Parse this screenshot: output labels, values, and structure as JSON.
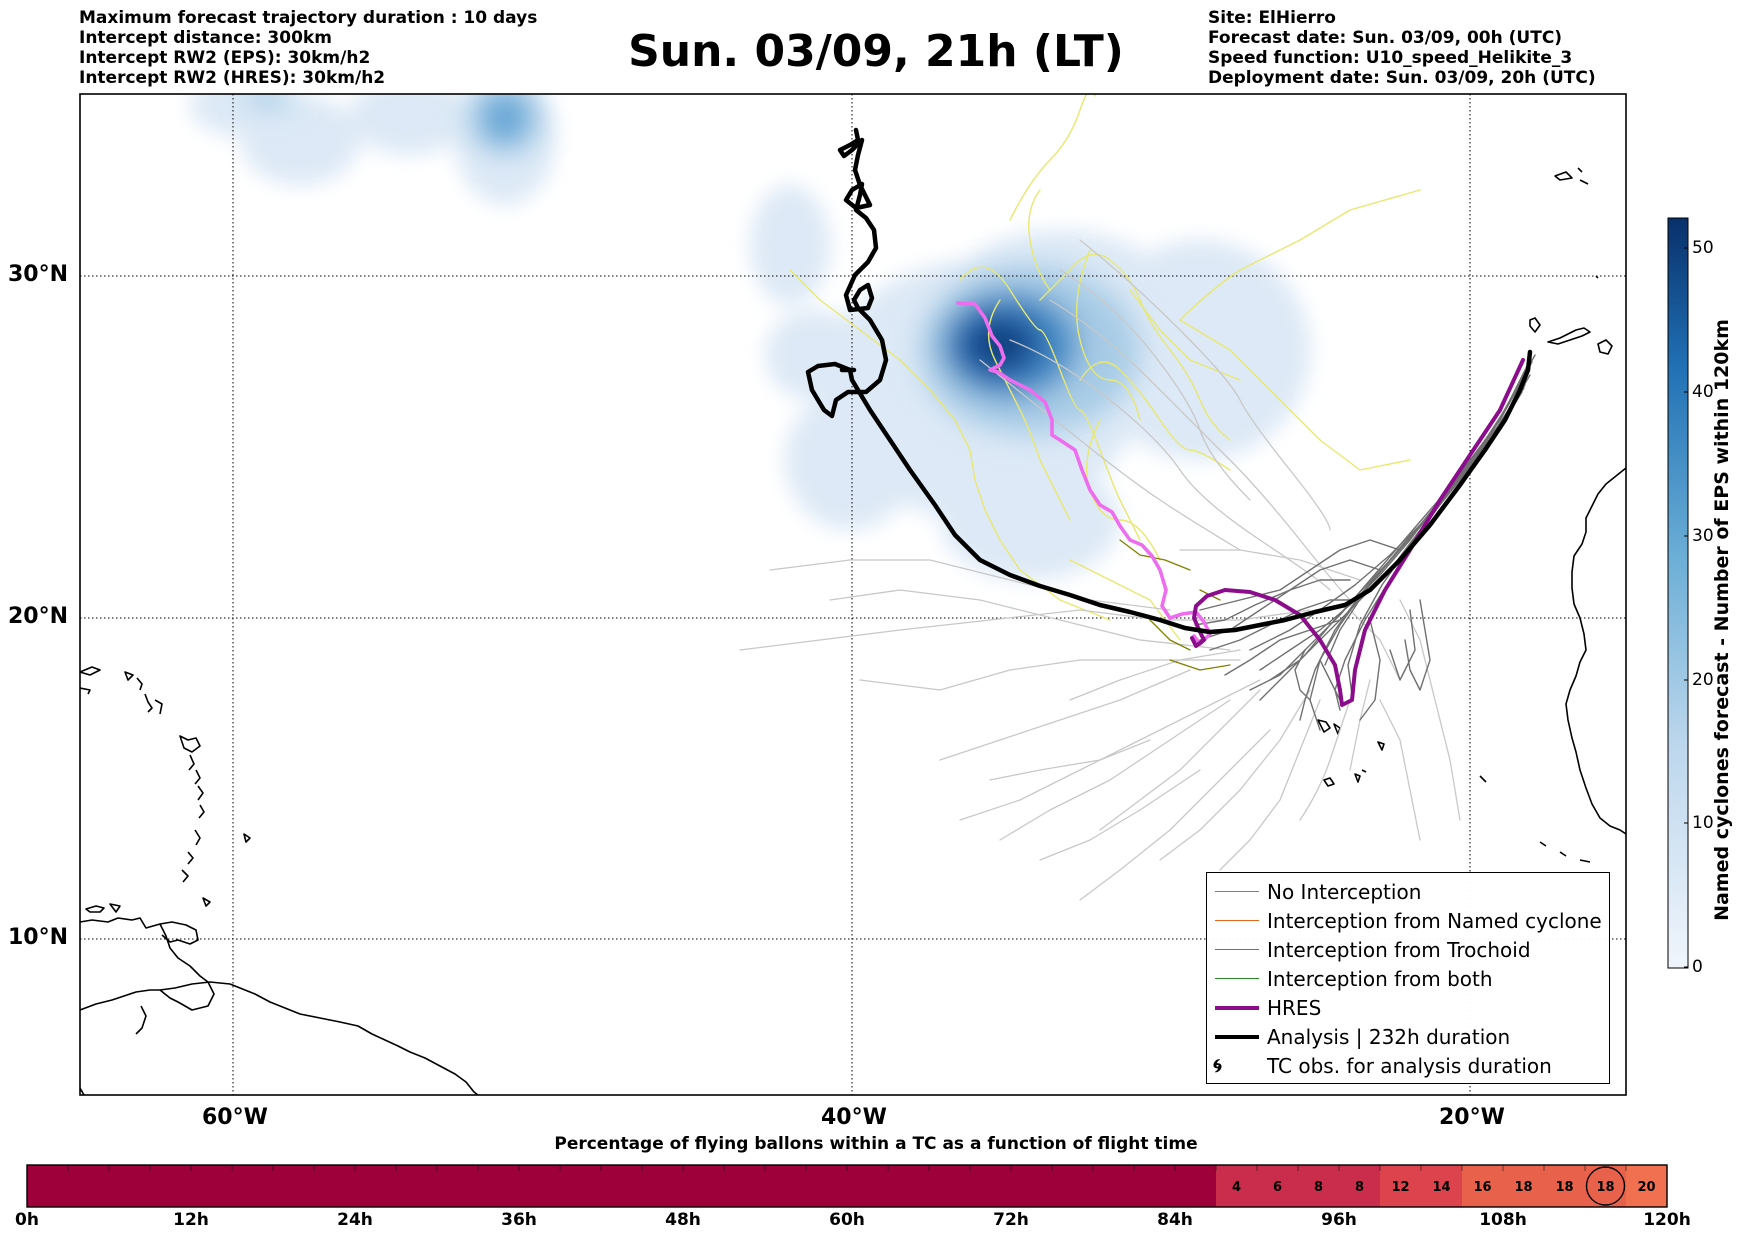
{
  "header_left": [
    "Maximum forecast trajectory duration : 10 days",
    "Intercept distance: 300km",
    "Intercept RW2 (EPS):  30km/h2",
    "Intercept RW2 (HRES): 30km/h2"
  ],
  "title": "Sun. 03/09, 21h (LT)",
  "header_right": [
    "Site: ElHierro",
    "Forecast date: Sun. 03/09, 00h (UTC)",
    "Speed function: U10_speed_Helikite_3",
    "Deployment date: Sun. 03/09, 20h (UTC)"
  ],
  "axes": {
    "lat_labels": [
      "30°N",
      "20°N",
      "10°N"
    ],
    "lon_labels": [
      "60°W",
      "40°W",
      "20°W"
    ]
  },
  "legend": [
    {
      "label": "No Interception",
      "color": "#808080"
    },
    {
      "label": "Interception from Named cyclone",
      "color": "#e8651c"
    },
    {
      "label": "Interception from Trochoid",
      "color": "#808000"
    },
    {
      "label": "Interception from both",
      "color": "#2a8a2a"
    },
    {
      "label": "HRES",
      "color": "#8b0d8b"
    },
    {
      "label": "Analysis | 232h duration",
      "color": "#000000"
    },
    {
      "label": "TC obs. for analysis duration",
      "color": "#000000"
    }
  ],
  "colorbar": {
    "title": "Named cyclones forecast - Number of EPS within 120km",
    "ticks": [
      "0",
      "10",
      "20",
      "30",
      "40",
      "50"
    ],
    "color_low": "#f0f5fc",
    "color_high": "#08306b"
  },
  "bottom_bar": {
    "title": "Percentage of flying ballons within a TC as a function of flight time",
    "time_labels": [
      "0h",
      "12h",
      "24h",
      "36h",
      "48h",
      "60h",
      "72h",
      "84h",
      "96h",
      "108h",
      "120h"
    ],
    "cell_values": [
      "",
      "",
      "",
      "",
      "",
      "",
      "",
      "",
      "",
      "",
      "",
      "",
      "",
      "",
      "",
      "",
      "",
      "",
      "",
      "",
      "",
      "",
      "",
      "",
      "",
      "",
      "",
      "",
      "",
      "4",
      "6",
      "8",
      "8",
      "12",
      "14",
      "16",
      "18",
      "18",
      "18",
      "20"
    ],
    "circled_value_index": 38,
    "colors": {
      "dark": "#9e003a",
      "mid": "#c92d4b",
      "light": "#e8614a",
      "lightest": "#f07050"
    }
  }
}
